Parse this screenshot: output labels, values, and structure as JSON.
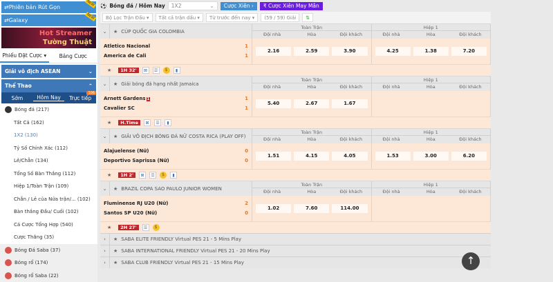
{
  "sidebar": {
    "top_buttons": [
      "Phiên bản Rút Gọn",
      "Galaxy"
    ],
    "new_badge": "NEW",
    "banner": {
      "line1": "Hot Streamer",
      "line2": "Tường Thuật"
    },
    "slip_tabs": [
      "Phiếu Đặt Cược ▾",
      "Bảng Cược"
    ],
    "asean": "Giải vô địch ASEAN",
    "sports_title": "Thể Thao",
    "time_tabs": [
      "Sớm",
      "Hôm Nay",
      "Trực tiếp"
    ],
    "live_count": "106",
    "football": "Bóng đá  (217)",
    "sub_items": [
      "Tất Cả  (162)",
      "1X2  (130)",
      "Tỷ Số Chính Xác  (112)",
      "Lẻ/Chẵn  (134)",
      "Tổng Số Bàn Thắng  (112)",
      "Hiệp 1/Toàn Trận  (109)",
      "Chẵn / Lẻ của Nửa trận/...  (102)",
      "Bàn thắng Đầu/ Cuối  (102)",
      "Cá Cược Tổng Hợp  (540)",
      "Cược Thắng  (35)"
    ],
    "other_sports": [
      "Bóng Đá Saba  (37)",
      "Bóng rổ  (174)",
      "Bóng rổ Saba  (22)"
    ]
  },
  "header": {
    "breadcrumb": "Bóng đá / Hôm Nay",
    "market": "1X2",
    "parlay": "Cược Xiên  ›",
    "lucky": "₹ Cược Xiên May Mắn"
  },
  "filters": [
    "Bộ Lọc Trận Đấu ▾",
    "Tất cả trận dấu ▾",
    "Từ trước đến nay ▾",
    "(59 / 59) Giải"
  ],
  "odds_header": {
    "full": "Toàn Trận",
    "half": "Hiệp 1",
    "cols": [
      "Đội nhà",
      "Hòa",
      "Đội khách"
    ]
  },
  "leagues": [
    {
      "name": "CÚP QUỐC GIA COLOMBIA",
      "home": "Atletico Nacional",
      "away": "America de Cali",
      "hs": "1",
      "as": "1",
      "red": "",
      "full": [
        "2.16",
        "2.59",
        "3.90"
      ],
      "half": [
        "4.25",
        "1.38",
        "7.20"
      ],
      "time": "1H 32'",
      "icons": [
        "stats",
        "list",
        "coin",
        "chart"
      ]
    },
    {
      "name": "Giải bóng đá hạng nhất Jamaica",
      "home": "Arnett Gardens",
      "away": "Cavalier SC",
      "hs": "1",
      "as": "1",
      "red": "1",
      "full": [
        "5.40",
        "2.67",
        "1.67"
      ],
      "half": [],
      "time": "H.Time",
      "icons": [
        "stats",
        "list",
        "chart"
      ]
    },
    {
      "name": "GIẢI VÔ ĐỊCH BÓNG ĐÁ NỮ COSTA RICA (PLAY OFF)",
      "home": "Alajuelense (Nữ)",
      "away": "Deportivo Saprissa (Nữ)",
      "hs": "0",
      "as": "0",
      "red": "",
      "full": [
        "1.51",
        "4.15",
        "4.05"
      ],
      "half": [
        "1.53",
        "3.00",
        "6.20"
      ],
      "time": "1H 2'",
      "icons": [
        "stats",
        "list",
        "coin",
        "chart"
      ]
    },
    {
      "name": "BRAZIL COPA SAO PAULO JUNIOR WOMEN",
      "home": "Fluminense RJ U20 (Nữ)",
      "away": "Santos SP U20 (Nữ)",
      "hs": "2",
      "as": "0",
      "red": "",
      "full": [
        "1.02",
        "7.60",
        "114.00"
      ],
      "half": [],
      "time": "2H 27'",
      "icons": [
        "list",
        "coin"
      ]
    }
  ],
  "collapsed": [
    "SABA ELITE FRIENDLY Virtual PES 21 - 5 Mins Play",
    "SABA INTERNATIONAL FRIENDLY Virtual PES 21 - 20 Mins Play",
    "SABA CLUB FRIENDLY Virtual PES 21 - 15 Mins Play"
  ],
  "colors": {
    "accent": "#3f8fd2",
    "match_bg": "#fde8d8",
    "score": "#e07a2a",
    "live": "#c0272d",
    "lucky": "#6a1de0"
  }
}
